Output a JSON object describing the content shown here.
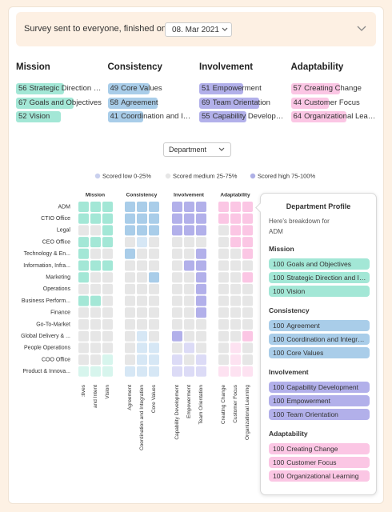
{
  "header": {
    "text": "Survey sent to everyone, finished on",
    "date": "08. Mar 2021"
  },
  "groups": [
    {
      "name": "Mission",
      "color": "#a3e7d6",
      "light": "#d7f5ed",
      "factors": [
        "Goals and Objectives",
        "Strategic Direction and Intent",
        "Vision"
      ],
      "summary": [
        {
          "score": 56,
          "name": "Strategic Direction and Intent"
        },
        {
          "score": 67,
          "name": "Goals and Objectives"
        },
        {
          "score": 52,
          "name": "Vision"
        }
      ]
    },
    {
      "name": "Consistency",
      "color": "#a9cde9",
      "light": "#d6e7f5",
      "factors": [
        "Agreement",
        "Coordination and Integration",
        "Core Values"
      ],
      "summary": [
        {
          "score": 49,
          "name": "Core Values"
        },
        {
          "score": 58,
          "name": "Agreement"
        },
        {
          "score": 41,
          "name": "Coordination and Integration"
        }
      ]
    },
    {
      "name": "Involvement",
      "color": "#b2b0ea",
      "light": "#dcdbf6",
      "factors": [
        "Capability Development",
        "Empowerment",
        "Team Orientation"
      ],
      "summary": [
        {
          "score": 51,
          "name": "Empowerment"
        },
        {
          "score": 69,
          "name": "Team Orientation"
        },
        {
          "score": 55,
          "name": "Capability Development"
        }
      ]
    },
    {
      "name": "Adaptability",
      "color": "#fbc6e4",
      "light": "#fde2f1",
      "factors": [
        "Creating Change",
        "Customer Focus",
        "Organizational Learning"
      ],
      "summary": [
        {
          "score": 57,
          "name": "Creating Change"
        },
        {
          "score": 44,
          "name": "Customer Focus"
        },
        {
          "score": 64,
          "name": "Organizational Learning"
        }
      ]
    }
  ],
  "filter": "Department",
  "legend": [
    {
      "label": "Scored low 0-25%",
      "color": "#c9d0ee"
    },
    {
      "label": "Scored medium 25-75%",
      "color": "#e6e6e6"
    },
    {
      "label": "Scored high 75-100%",
      "color": "#aeb0e6"
    }
  ],
  "heatmap": {
    "rows": [
      {
        "name": "ADM",
        "levels": [
          2,
          2,
          2,
          2,
          2,
          2,
          2,
          2,
          2,
          2,
          2,
          2
        ]
      },
      {
        "name": "CTIO Office",
        "levels": [
          2,
          2,
          2,
          2,
          2,
          2,
          2,
          2,
          2,
          2,
          2,
          2
        ]
      },
      {
        "name": "Legal",
        "levels": [
          1,
          1,
          2,
          2,
          2,
          2,
          2,
          2,
          2,
          1,
          2,
          2
        ]
      },
      {
        "name": "CEO Office",
        "levels": [
          2,
          2,
          2,
          1,
          0,
          1,
          1,
          1,
          1,
          1,
          2,
          2
        ]
      },
      {
        "name": "Technology & En...",
        "levels": [
          2,
          1,
          1,
          2,
          1,
          1,
          1,
          1,
          2,
          1,
          1,
          2
        ]
      },
      {
        "name": "Information, Infra...",
        "levels": [
          2,
          2,
          2,
          1,
          1,
          1,
          1,
          2,
          2,
          1,
          1,
          1
        ]
      },
      {
        "name": "Marketing",
        "levels": [
          2,
          1,
          1,
          1,
          1,
          2,
          1,
          1,
          2,
          1,
          1,
          2
        ]
      },
      {
        "name": "Operations",
        "levels": [
          1,
          1,
          1,
          1,
          1,
          1,
          1,
          1,
          2,
          1,
          1,
          1
        ]
      },
      {
        "name": "Business Perform...",
        "levels": [
          2,
          2,
          1,
          1,
          1,
          1,
          1,
          1,
          2,
          1,
          1,
          1
        ]
      },
      {
        "name": "Finance",
        "levels": [
          1,
          1,
          1,
          1,
          1,
          1,
          1,
          1,
          2,
          1,
          1,
          1
        ]
      },
      {
        "name": "Go-To-Market",
        "levels": [
          1,
          1,
          1,
          1,
          1,
          1,
          1,
          1,
          1,
          1,
          1,
          1
        ]
      },
      {
        "name": "Global Delivery & ...",
        "levels": [
          1,
          1,
          1,
          1,
          0,
          1,
          2,
          1,
          1,
          1,
          1,
          2
        ]
      },
      {
        "name": "People Operations",
        "levels": [
          1,
          1,
          1,
          1,
          0,
          0,
          1,
          0,
          1,
          1,
          0,
          1
        ]
      },
      {
        "name": "COO Office",
        "levels": [
          1,
          1,
          0,
          1,
          0,
          0,
          0,
          1,
          0,
          1,
          0,
          1
        ]
      },
      {
        "name": "Product & Innova...",
        "levels": [
          0,
          0,
          0,
          0,
          0,
          0,
          0,
          0,
          0,
          0,
          0,
          0
        ]
      }
    ]
  },
  "profile": {
    "title": "Department Profile",
    "intro": "Here's breakdown for",
    "department": "ADM",
    "scores": [
      [
        100,
        100,
        100
      ],
      [
        100,
        100,
        100
      ],
      [
        100,
        100,
        100
      ],
      [
        100,
        100,
        100
      ]
    ]
  }
}
